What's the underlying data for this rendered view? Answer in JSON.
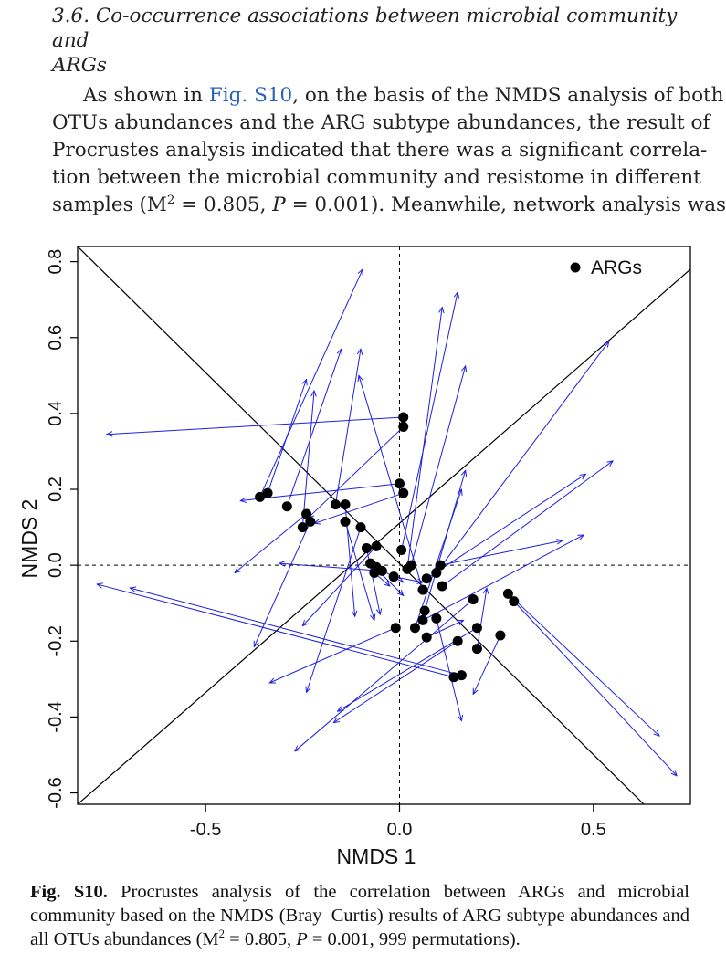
{
  "section": {
    "heading_line1": "3.6.  Co-occurrence associations between microbial community and",
    "heading_line2": "ARGs"
  },
  "paragraph": {
    "l1_pre": "As shown in ",
    "l1_link": "Fig. S10",
    "l1_post": ", on the basis of the NMDS analysis of both",
    "l2": "OTUs abundances and the ARG subtype abundances, the result of",
    "l3": "Procrustes analysis indicated that there was a significant correla-",
    "l4": "tion between the microbial community and resistome in different",
    "l5_a": "samples (M",
    "l5_sup": "2",
    "l5_b": " = 0.805, ",
    "l5_p": "P",
    "l5_c": " = 0.001). Meanwhile, network analysis was"
  },
  "chart_data": {
    "type": "scatter",
    "xlabel": "NMDS 1",
    "ylabel": "NMDS 2",
    "xlim": [
      -0.83,
      0.75
    ],
    "ylim": [
      -0.63,
      0.84
    ],
    "x_ticks": [
      -0.5,
      0.0,
      0.5
    ],
    "x_tick_labels": [
      "-0.5",
      "0.0",
      "0.5"
    ],
    "y_ticks": [
      -0.6,
      -0.4,
      -0.2,
      0.0,
      0.2,
      0.4,
      0.6,
      0.8
    ],
    "y_tick_labels": [
      "-0.6",
      "-0.4",
      "-0.2",
      "0.0",
      "0.2",
      "0.4",
      "0.6",
      "0.8"
    ],
    "legend": {
      "label": "ARGs",
      "position": "top-right"
    },
    "reference_lines": {
      "diagonal_pos": {
        "x1": -0.83,
        "y1": -0.63,
        "x2": 0.75,
        "y2": 0.78
      },
      "diagonal_neg": {
        "x1": -0.83,
        "y1": 0.84,
        "x2": 0.63,
        "y2": -0.63
      },
      "zero_axes": "dashed"
    },
    "colors": {
      "points": "#000000",
      "arrows": "#1f1fe0",
      "frame": "#000000"
    },
    "points": [
      [
        -0.36,
        0.18
      ],
      [
        -0.34,
        0.19
      ],
      [
        -0.29,
        0.155
      ],
      [
        -0.24,
        0.135
      ],
      [
        -0.25,
        0.1
      ],
      [
        -0.23,
        0.115
      ],
      [
        -0.165,
        0.16
      ],
      [
        -0.14,
        0.16
      ],
      [
        -0.14,
        0.115
      ],
      [
        -0.1,
        0.1
      ],
      [
        -0.085,
        0.045
      ],
      [
        -0.06,
        0.05
      ],
      [
        -0.075,
        0.005
      ],
      [
        -0.06,
        -0.005
      ],
      [
        -0.065,
        -0.02
      ],
      [
        -0.045,
        -0.015
      ],
      [
        -0.015,
        -0.03
      ],
      [
        0.0,
        0.215
      ],
      [
        0.01,
        0.19
      ],
      [
        0.01,
        0.39
      ],
      [
        0.01,
        0.365
      ],
      [
        0.005,
        0.04
      ],
      [
        0.02,
        -0.01
      ],
      [
        0.03,
        0.0
      ],
      [
        0.07,
        -0.035
      ],
      [
        0.095,
        -0.02
      ],
      [
        0.105,
        0.0
      ],
      [
        0.11,
        -0.055
      ],
      [
        0.06,
        -0.065
      ],
      [
        0.065,
        -0.12
      ],
      [
        0.06,
        -0.145
      ],
      [
        0.04,
        -0.165
      ],
      [
        -0.01,
        -0.165
      ],
      [
        0.07,
        -0.19
      ],
      [
        0.095,
        -0.14
      ],
      [
        0.15,
        -0.2
      ],
      [
        0.19,
        -0.09
      ],
      [
        0.2,
        -0.165
      ],
      [
        0.2,
        -0.22
      ],
      [
        0.26,
        -0.185
      ],
      [
        0.28,
        -0.075
      ],
      [
        0.295,
        -0.095
      ],
      [
        0.14,
        -0.295
      ],
      [
        0.16,
        -0.29
      ]
    ],
    "arrows": [
      [
        -0.36,
        0.18,
        -0.095,
        0.78
      ],
      [
        -0.34,
        0.19,
        -0.24,
        0.49
      ],
      [
        -0.29,
        0.155,
        -0.15,
        0.57
      ],
      [
        -0.24,
        0.135,
        -0.425,
        -0.02
      ],
      [
        -0.25,
        0.1,
        -0.22,
        0.46
      ],
      [
        -0.23,
        0.115,
        -0.375,
        -0.215
      ],
      [
        -0.165,
        0.16,
        -0.1,
        0.57
      ],
      [
        -0.14,
        0.16,
        -0.115,
        -0.135
      ],
      [
        -0.14,
        0.115,
        -0.065,
        -0.145
      ],
      [
        -0.1,
        0.1,
        -0.24,
        -0.335
      ],
      [
        -0.085,
        0.045,
        -0.05,
        -0.13
      ],
      [
        -0.06,
        0.05,
        -0.25,
        -0.16
      ],
      [
        -0.075,
        0.005,
        0.01,
        -0.08
      ],
      [
        -0.06,
        -0.005,
        0.01,
        -0.045
      ],
      [
        -0.065,
        -0.02,
        -0.025,
        -0.055
      ],
      [
        -0.045,
        -0.015,
        -0.31,
        0.005
      ],
      [
        -0.015,
        -0.03,
        0.06,
        -0.045
      ],
      [
        0.0,
        0.215,
        -0.41,
        0.17
      ],
      [
        0.01,
        0.19,
        -0.22,
        0.11
      ],
      [
        0.01,
        0.39,
        -0.755,
        0.345
      ],
      [
        0.01,
        0.365,
        -0.235,
        0.125
      ],
      [
        0.005,
        0.04,
        0.15,
        0.72
      ],
      [
        0.02,
        -0.01,
        0.11,
        0.68
      ],
      [
        0.03,
        0.0,
        0.17,
        0.525
      ],
      [
        0.07,
        -0.035,
        0.48,
        0.24
      ],
      [
        0.095,
        -0.02,
        0.54,
        0.59
      ],
      [
        0.105,
        0.0,
        0.42,
        0.065
      ],
      [
        0.11,
        -0.055,
        0.55,
        0.275
      ],
      [
        0.06,
        -0.065,
        -0.105,
        0.5
      ],
      [
        0.065,
        -0.12,
        0.17,
        0.25
      ],
      [
        0.06,
        -0.145,
        0.475,
        0.08
      ],
      [
        0.04,
        -0.165,
        0.16,
        0.2
      ],
      [
        -0.01,
        -0.165,
        -0.335,
        -0.31
      ],
      [
        0.07,
        -0.19,
        0.165,
        -0.145
      ],
      [
        0.095,
        -0.14,
        0.16,
        -0.41
      ],
      [
        0.15,
        -0.2,
        -0.17,
        -0.415
      ],
      [
        0.19,
        -0.09,
        -0.27,
        -0.49
      ],
      [
        0.2,
        -0.165,
        -0.16,
        -0.385
      ],
      [
        0.2,
        -0.22,
        0.225,
        -0.06
      ],
      [
        0.26,
        -0.185,
        0.19,
        -0.34
      ],
      [
        0.28,
        -0.075,
        0.67,
        -0.45
      ],
      [
        0.295,
        -0.095,
        0.715,
        -0.555
      ],
      [
        0.14,
        -0.295,
        -0.78,
        -0.05
      ],
      [
        0.16,
        -0.29,
        -0.695,
        -0.06
      ]
    ]
  },
  "caption": {
    "label": "Fig. S10.",
    "l1": " Procrustes analysis of the correlation between ARGs and microbial",
    "l2": "community based on the NMDS (Bray–Curtis) results of ARG subtype abundances and",
    "l3_a": "all OTUs abundances (M",
    "l3_sup": "2",
    "l3_b": " = 0.805, ",
    "l3_p": "P",
    "l3_c": " = 0.001, 999 permutations)."
  }
}
